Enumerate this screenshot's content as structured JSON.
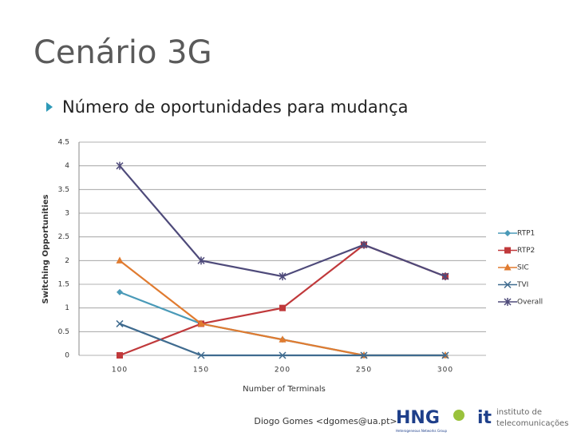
{
  "slide": {
    "title": "Cenário 3G",
    "bullet": "Número de oportunidades para mudança",
    "footer": "Diogo Gomes <dgomes@ua.pt>",
    "logo_hng": "HNG",
    "logo_hng_sub": "Heterogeneous Networks Group",
    "logo_it_1": "instituto de",
    "logo_it_2": "telecomunicações"
  },
  "chart_data": {
    "type": "line",
    "xlabel": "Number of Terminals",
    "ylabel": "Switching Opportunities",
    "categories": [
      "100",
      "150",
      "200",
      "250",
      "300"
    ],
    "ylim": [
      0,
      4.5
    ],
    "yticks": [
      0,
      0.5,
      1,
      1.5,
      2,
      2.5,
      3,
      3.5,
      4,
      4.5
    ],
    "grid": true,
    "legend": "right",
    "series": [
      {
        "name": "RTP1",
        "color": "#4a9ab8",
        "marker": "diamond",
        "values": [
          1.333,
          0.667,
          0.333,
          0,
          0
        ]
      },
      {
        "name": "RTP2",
        "color": "#c0393b",
        "marker": "square",
        "values": [
          0,
          0.667,
          1,
          2.333,
          1.667
        ]
      },
      {
        "name": "SIC",
        "color": "#e07b30",
        "marker": "triangle",
        "values": [
          2,
          0.667,
          0.333,
          0,
          0
        ]
      },
      {
        "name": "TVI",
        "color": "#3f6b8f",
        "marker": "x",
        "values": [
          0.667,
          0,
          0,
          0,
          0
        ]
      },
      {
        "name": "Overall",
        "color": "#4e4a7a",
        "marker": "star",
        "values": [
          4,
          2,
          1.667,
          2.333,
          1.667
        ]
      }
    ]
  }
}
